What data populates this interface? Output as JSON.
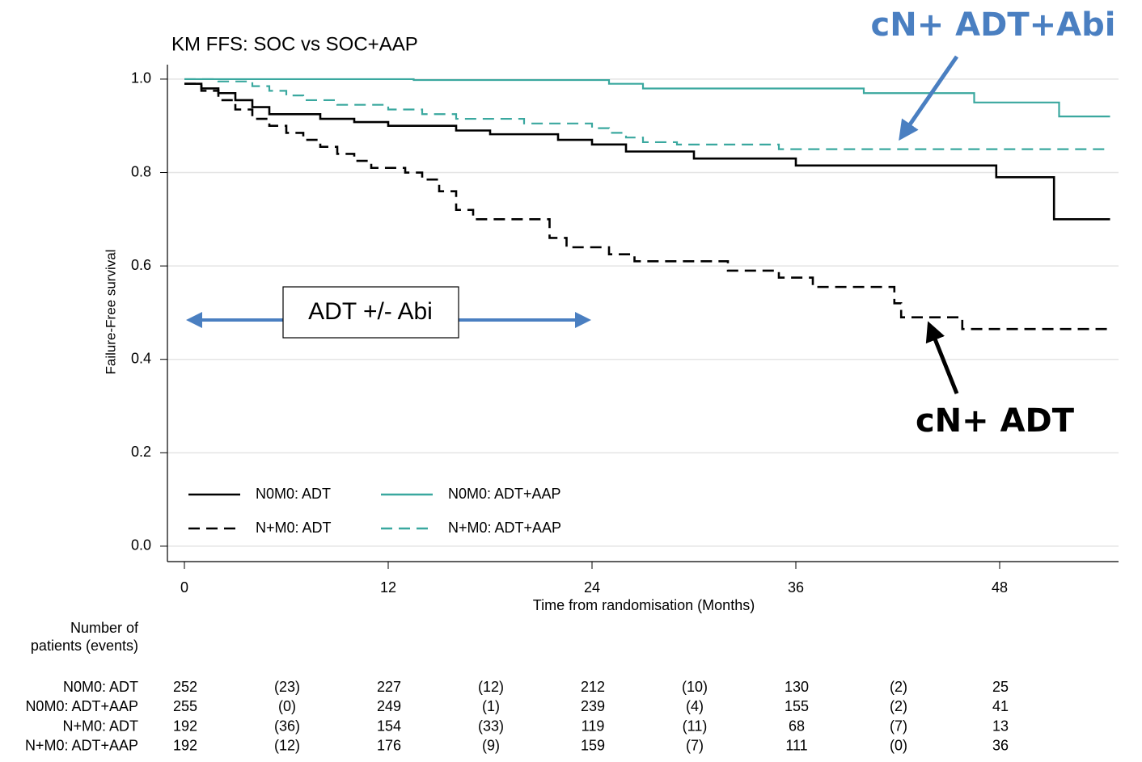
{
  "chart_data": {
    "type": "line",
    "title": "KM FFS: SOC vs SOC+AAP",
    "x_label": "Time from randomisation (Months)",
    "y_label": "Failure-Free survival",
    "xlim": [
      -1,
      55
    ],
    "ylim": [
      -0.033,
      1.031
    ],
    "xticks": [
      0,
      12,
      24,
      36,
      48
    ],
    "yticks": [
      {
        "value": 0,
        "label": "0.0"
      },
      {
        "value": 0.2,
        "label": "0.2"
      },
      {
        "value": 0.4,
        "label": "0.4"
      },
      {
        "value": 0.6,
        "label": "0.6"
      },
      {
        "value": 0.8,
        "label": "0.8"
      },
      {
        "value": 1,
        "label": "1.0"
      }
    ],
    "grid": true,
    "series": [
      {
        "name": "N0M0: ADT",
        "color": "#000000",
        "dash": false,
        "x": [
          0,
          1,
          1,
          2,
          2,
          3,
          3,
          4,
          4,
          5,
          5,
          8,
          8,
          10,
          10,
          12,
          12,
          16,
          16,
          18,
          18,
          22,
          22,
          24,
          24,
          26,
          26,
          30,
          30,
          36,
          36,
          47.8,
          47.8,
          51.2,
          51.2,
          54.5
        ],
        "values": [
          0.99,
          0.99,
          0.98,
          0.98,
          0.97,
          0.97,
          0.955,
          0.955,
          0.94,
          0.94,
          0.925,
          0.925,
          0.915,
          0.915,
          0.908,
          0.908,
          0.9,
          0.9,
          0.89,
          0.89,
          0.882,
          0.882,
          0.87,
          0.87,
          0.86,
          0.86,
          0.845,
          0.845,
          0.83,
          0.83,
          0.815,
          0.815,
          0.79,
          0.79,
          0.7,
          0.7
        ]
      },
      {
        "name": "N0M0: ADT+AAP",
        "color": "#3aa89f",
        "dash": false,
        "x": [
          0,
          13.5,
          13.5,
          25,
          25,
          27,
          27,
          40,
          40,
          46.5,
          46.5,
          51.5,
          51.5,
          54.5
        ],
        "values": [
          1,
          1,
          0.998,
          0.998,
          0.99,
          0.99,
          0.98,
          0.98,
          0.97,
          0.97,
          0.95,
          0.95,
          0.92,
          0.92
        ]
      },
      {
        "name": "N+M0: ADT",
        "color": "#000000",
        "dash": true,
        "x": [
          0,
          1,
          1,
          2,
          2,
          3,
          3,
          4,
          4,
          5,
          5,
          6,
          6,
          7,
          7,
          8,
          8,
          9,
          9,
          10,
          10,
          11,
          11,
          13,
          13,
          14,
          14,
          15,
          15,
          16,
          16,
          17,
          17,
          21.5,
          21.5,
          22.5,
          22.5,
          25,
          25,
          26.5,
          26.5,
          32,
          32,
          35,
          35,
          37,
          37,
          41.8,
          41.8,
          42.2,
          42.2,
          45.8,
          45.8,
          54.5
        ],
        "values": [
          0.99,
          0.99,
          0.975,
          0.975,
          0.955,
          0.955,
          0.935,
          0.935,
          0.915,
          0.915,
          0.9,
          0.9,
          0.885,
          0.885,
          0.87,
          0.87,
          0.855,
          0.855,
          0.84,
          0.84,
          0.825,
          0.825,
          0.81,
          0.81,
          0.8,
          0.8,
          0.785,
          0.785,
          0.76,
          0.76,
          0.72,
          0.72,
          0.7,
          0.7,
          0.66,
          0.66,
          0.64,
          0.64,
          0.625,
          0.625,
          0.61,
          0.61,
          0.59,
          0.59,
          0.575,
          0.575,
          0.555,
          0.555,
          0.52,
          0.52,
          0.49,
          0.49,
          0.465,
          0.465
        ]
      },
      {
        "name": "N+M0: ADT+AAP",
        "color": "#3aa89f",
        "dash": true,
        "x": [
          0,
          2,
          2,
          4,
          4,
          5,
          5,
          6,
          6,
          7,
          7,
          9,
          9,
          12,
          12,
          14,
          14,
          16,
          16,
          20,
          20,
          24,
          24,
          25,
          25,
          26,
          26,
          27,
          27,
          29,
          29,
          35,
          35,
          54.5
        ],
        "values": [
          1,
          1,
          0.995,
          0.995,
          0.985,
          0.985,
          0.975,
          0.975,
          0.965,
          0.965,
          0.955,
          0.955,
          0.945,
          0.945,
          0.935,
          0.935,
          0.925,
          0.925,
          0.915,
          0.915,
          0.905,
          0.905,
          0.895,
          0.895,
          0.885,
          0.885,
          0.875,
          0.875,
          0.865,
          0.865,
          0.86,
          0.86,
          0.85,
          0.85
        ]
      }
    ],
    "annotations": {
      "top": "cN+ ADT+Abi",
      "bottom": "cN+ ADT",
      "box": "ADT +/- Abi"
    },
    "risk_table": {
      "title_lines": [
        "Number of",
        "patients (events)"
      ],
      "rows": [
        {
          "label": "N0M0: ADT",
          "cells": [
            "252",
            "(23)",
            "227",
            "(12)",
            "212",
            "(10)",
            "130",
            "(2)",
            "25"
          ]
        },
        {
          "label": "N0M0: ADT+AAP",
          "cells": [
            "255",
            "(0)",
            "249",
            "(1)",
            "239",
            "(4)",
            "155",
            "(2)",
            "41"
          ]
        },
        {
          "label": "N+M0: ADT",
          "cells": [
            "192",
            "(36)",
            "154",
            "(33)",
            "119",
            "(11)",
            "68",
            "(7)",
            "13"
          ]
        },
        {
          "label": "N+M0: ADT+AAP",
          "cells": [
            "192",
            "(12)",
            "176",
            "(9)",
            "159",
            "(7)",
            "111",
            "(0)",
            "36"
          ]
        }
      ]
    }
  }
}
